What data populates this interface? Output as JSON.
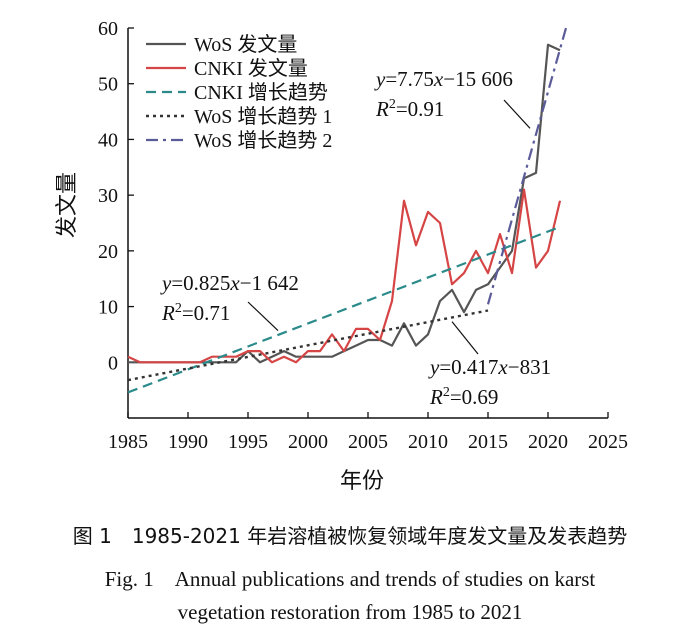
{
  "chart_data": {
    "type": "line",
    "xlabel": "年份",
    "ylabel": "发文量",
    "xlim": [
      1985,
      2025
    ],
    "ylim": [
      -10,
      60
    ],
    "x_ticks": [
      1985,
      1990,
      1995,
      2000,
      2005,
      2010,
      2015,
      2020,
      2025
    ],
    "y_ticks": [
      0,
      10,
      20,
      30,
      40,
      50,
      60
    ],
    "grid": false,
    "legend_position": "top-left",
    "series": [
      {
        "name": "WoS 发文量",
        "style": "solid",
        "color": "#555555",
        "x": [
          1985,
          1986,
          1987,
          1988,
          1989,
          1990,
          1991,
          1992,
          1993,
          1994,
          1995,
          1996,
          1997,
          1998,
          1999,
          2000,
          2001,
          2002,
          2003,
          2004,
          2005,
          2006,
          2007,
          2008,
          2009,
          2010,
          2011,
          2012,
          2013,
          2014,
          2015,
          2016,
          2017,
          2018,
          2019,
          2020,
          2021
        ],
        "y": [
          0,
          0,
          0,
          0,
          0,
          0,
          0,
          0,
          0,
          0,
          2,
          0,
          1,
          2,
          1,
          1,
          1,
          1,
          2,
          3,
          4,
          4,
          3,
          7,
          3,
          5,
          11,
          13,
          9,
          13,
          14,
          17,
          20,
          33,
          34,
          57,
          56
        ]
      },
      {
        "name": "CNKI 发文量",
        "style": "solid",
        "color": "#d64545",
        "x": [
          1985,
          1986,
          1987,
          1988,
          1989,
          1990,
          1991,
          1992,
          1993,
          1994,
          1995,
          1996,
          1997,
          1998,
          1999,
          2000,
          2001,
          2002,
          2003,
          2004,
          2005,
          2006,
          2007,
          2008,
          2009,
          2010,
          2011,
          2012,
          2013,
          2014,
          2015,
          2016,
          2017,
          2018,
          2019,
          2020,
          2021
        ],
        "y": [
          1,
          0,
          0,
          0,
          0,
          0,
          0,
          1,
          1,
          1,
          2,
          2,
          0,
          1,
          0,
          2,
          2,
          5,
          2,
          6,
          6,
          4,
          11,
          29,
          21,
          27,
          25,
          14,
          16,
          20,
          16,
          23,
          16,
          31,
          17,
          20,
          29
        ]
      },
      {
        "name": "CNKI 增长趋势",
        "style": "dashed",
        "color": "#2b8a8a",
        "x": [
          1985,
          2021
        ],
        "y": [
          -5.4,
          24.3
        ]
      },
      {
        "name": "WoS 增长趋势 1",
        "style": "dotted",
        "color": "#333333",
        "x": [
          1985,
          2015
        ],
        "y": [
          -3.2,
          9.3
        ]
      },
      {
        "name": "WoS 增长趋势 2",
        "style": "dashdot",
        "color": "#5b5b9a",
        "x": [
          2015,
          2021.5
        ],
        "y": [
          10.4,
          60.0
        ]
      }
    ],
    "annotations": [
      {
        "italic": "y",
        "text": "=0.825",
        "italic2": "x",
        "text2": "−1 642",
        "r2": "=0.71",
        "r2_label": "R",
        "sup": "2",
        "pointer": {
          "x": 1997.5,
          "y": 5.7
        }
      },
      {
        "italic": "y",
        "text": "=0.417",
        "italic2": "x",
        "text2": "−831",
        "r2": "=0.69",
        "r2_label": "R",
        "sup": "2",
        "pointer": {
          "x": 2012,
          "y": 7.3
        }
      },
      {
        "italic": "y",
        "text": "=7.75",
        "italic2": "x",
        "text2": "−15 606",
        "r2": "=0.91",
        "r2_label": "R",
        "sup": "2",
        "pointer": {
          "x": 2018.5,
          "y": 42
        }
      }
    ]
  },
  "caption": {
    "zh": "图 1　1985-2021 年岩溶植被恢复领域年度发文量及发表趋势",
    "en_line1": "Fig. 1　Annual publications and trends of studies on karst",
    "en_line2": "vegetation restoration from 1985 to 2021"
  }
}
